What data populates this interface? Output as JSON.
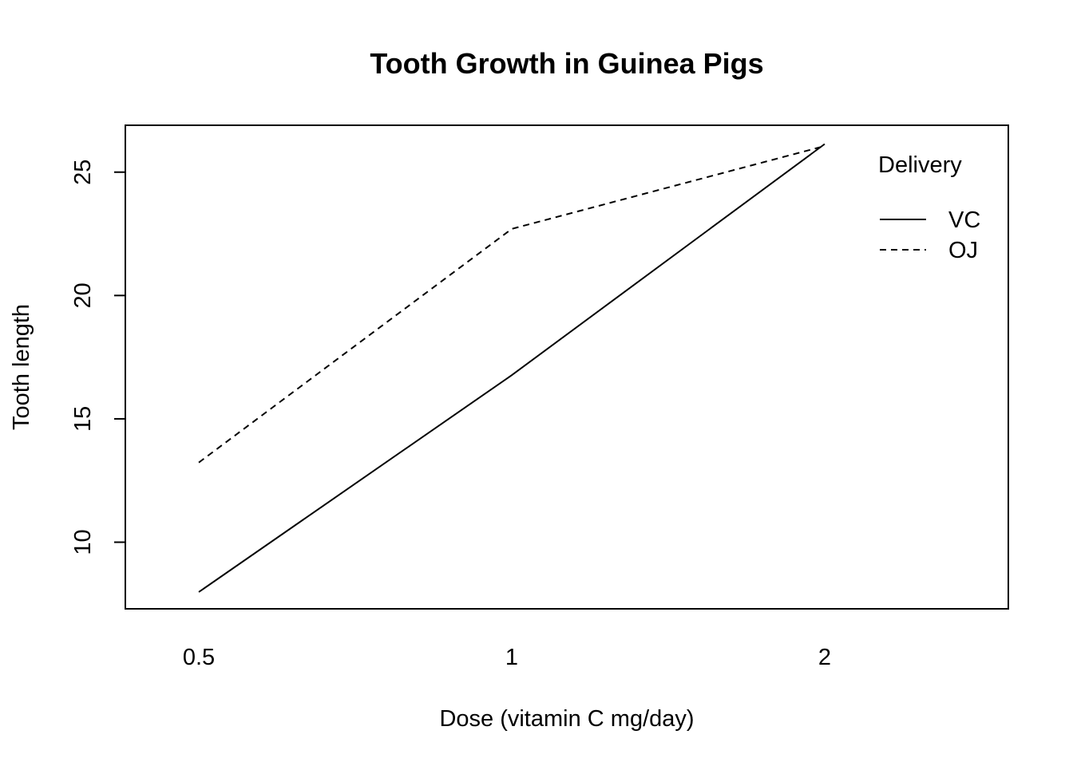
{
  "chart_data": {
    "type": "line",
    "title": "Tooth Growth in Guinea Pigs",
    "xlabel": "Dose (vitamin C mg/day)",
    "ylabel": "Tooth length",
    "categories": [
      "0.5",
      "1",
      "2"
    ],
    "ylim": [
      7.3,
      26.9
    ],
    "yticks": [
      "10",
      "15",
      "20",
      "25"
    ],
    "grid": false,
    "legend": {
      "title": "Delivery",
      "placement": "top-right",
      "entries": [
        {
          "label": "VC",
          "style": "solid"
        },
        {
          "label": "OJ",
          "style": "dashed"
        }
      ]
    },
    "series": [
      {
        "name": "VC",
        "style": "solid",
        "values": [
          7.98,
          16.77,
          26.14
        ]
      },
      {
        "name": "OJ",
        "style": "dashed",
        "values": [
          13.23,
          22.7,
          26.06
        ]
      }
    ]
  }
}
